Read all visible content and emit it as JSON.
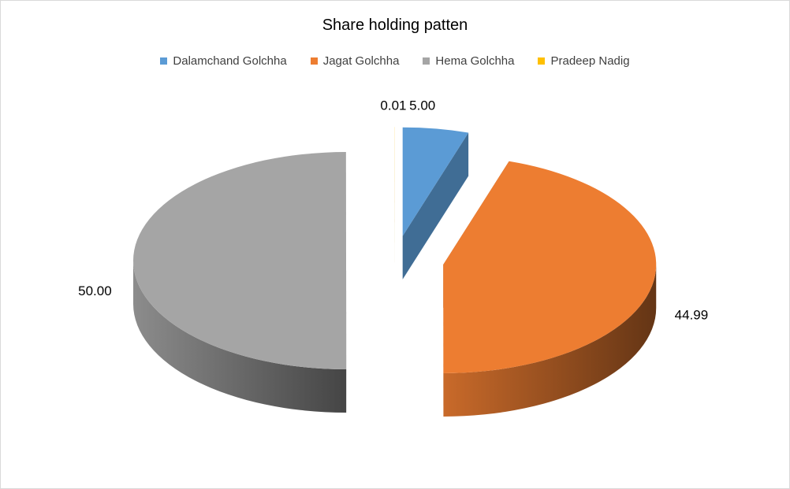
{
  "chart_data": {
    "type": "pie",
    "title": "Share holding patten",
    "legend_position": "top",
    "slices": [
      {
        "label": "Dalamchand Golchha",
        "value": 5.0,
        "value_label": "5.00",
        "color": "#5b9bd5"
      },
      {
        "label": "Jagat Golchha",
        "value": 44.99,
        "value_label": "44.99",
        "color": "#ed7d31"
      },
      {
        "label": "Hema Golchha",
        "value": 50.0,
        "value_label": "50.00",
        "color": "#a5a5a5"
      },
      {
        "label": "Pradeep Nadig",
        "value": 0.01,
        "value_label": "0.01",
        "color": "#ffc000"
      }
    ]
  }
}
